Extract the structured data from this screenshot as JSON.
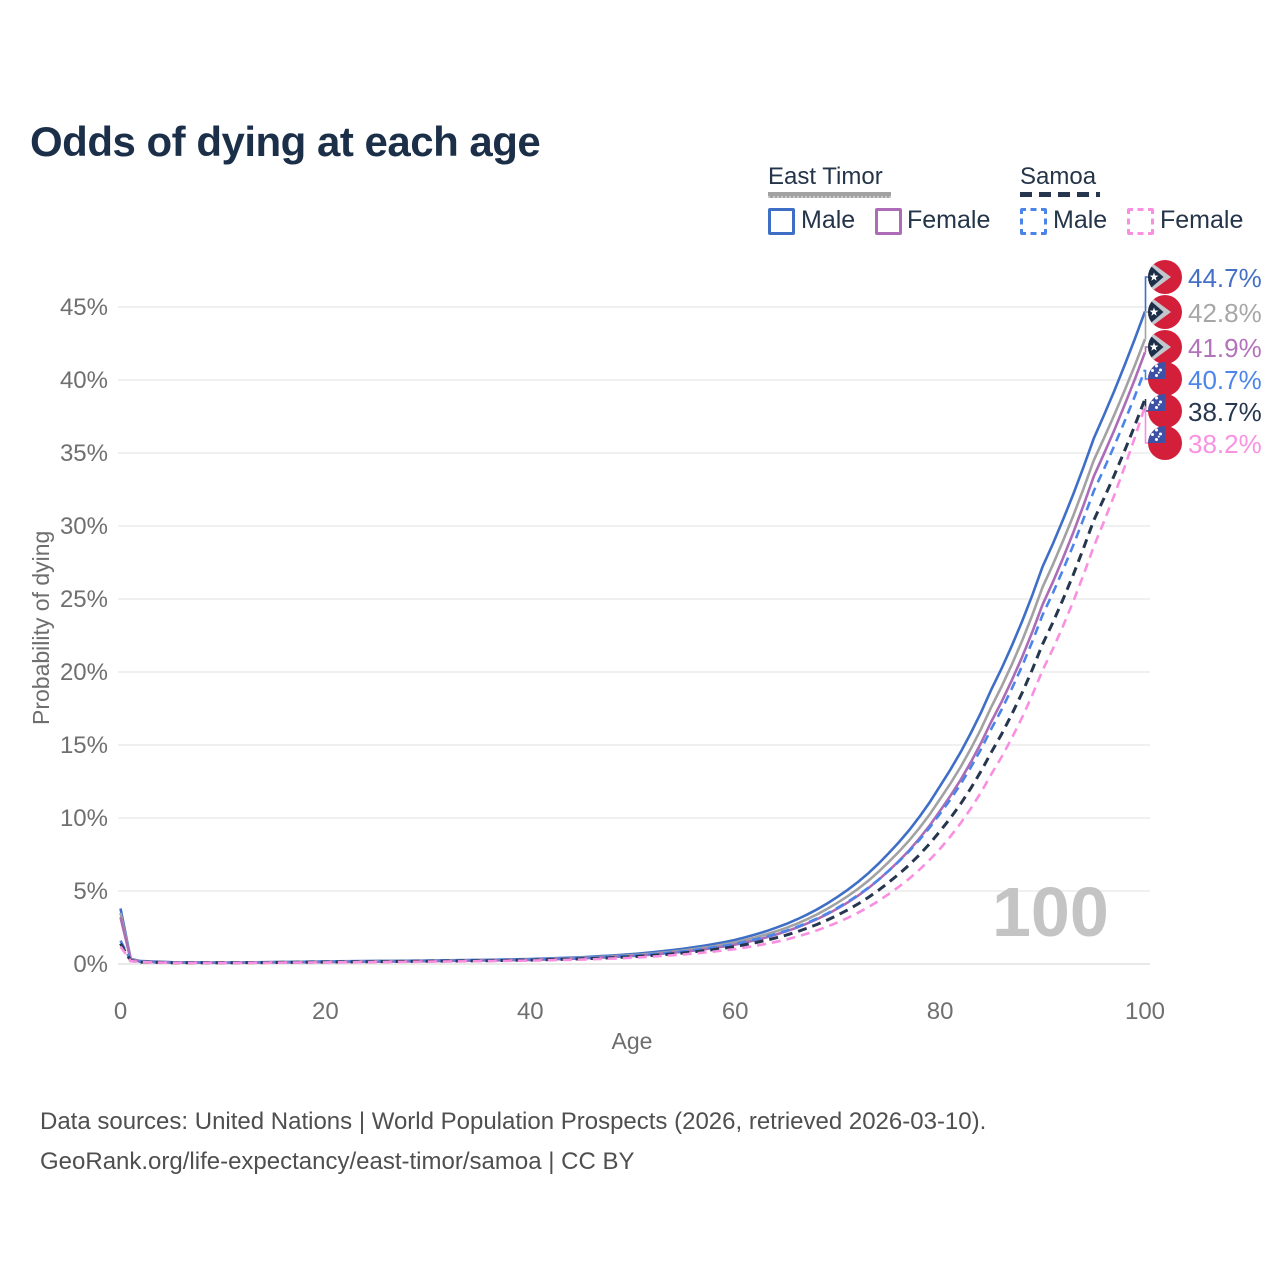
{
  "title": "Odds of dying at each age",
  "watermark": "100",
  "legend": {
    "groups": [
      {
        "country": "East Timor",
        "line_style": "solid",
        "underline_color": "#a2a2a2",
        "items": [
          {
            "label": "Male",
            "color": "#3f6ec6",
            "dashed": false
          },
          {
            "label": "Female",
            "color": "#ac6db6",
            "dashed": false
          }
        ]
      },
      {
        "country": "Samoa",
        "line_style": "dashed",
        "underline_color": "#25364e",
        "items": [
          {
            "label": "Male",
            "color": "#4c85ea",
            "dashed": true
          },
          {
            "label": "Female",
            "color": "#f98fe0",
            "dashed": true
          }
        ]
      }
    ]
  },
  "chart_data": {
    "type": "line",
    "title": "Odds of dying at each age",
    "xlabel": "Age",
    "ylabel": "Probability of dying",
    "xlim": [
      0,
      100
    ],
    "ylim_percent": [
      0,
      47
    ],
    "grid": "horizontal",
    "x_ticks": [
      0,
      20,
      40,
      60,
      80,
      100
    ],
    "x_tick_labels": [
      "0",
      "20",
      "40",
      "60",
      "80",
      "100"
    ],
    "y_ticks_percent": [
      0,
      5,
      10,
      15,
      20,
      25,
      30,
      35,
      40,
      45
    ],
    "y_tick_labels": [
      "0%",
      "5%",
      "10%",
      "15%",
      "20%",
      "25%",
      "30%",
      "35%",
      "40%",
      "45%"
    ],
    "x": [
      0,
      1,
      2,
      5,
      10,
      15,
      20,
      25,
      30,
      35,
      40,
      45,
      50,
      55,
      60,
      65,
      70,
      75,
      80,
      85,
      90,
      95,
      100
    ],
    "series": [
      {
        "id": "east-timor-male",
        "name": "East Timor Male",
        "country": "East Timor",
        "sex": "male",
        "color": "#3f6ec6",
        "dashed": false,
        "end_label": "44.7%",
        "values": [
          3.8,
          0.35,
          0.2,
          0.12,
          0.1,
          0.13,
          0.18,
          0.21,
          0.24,
          0.28,
          0.34,
          0.46,
          0.68,
          1.05,
          1.65,
          2.75,
          4.6,
          7.6,
          12.2,
          18.8,
          27.2,
          36.0,
          44.7
        ]
      },
      {
        "id": "east-timor-both",
        "name": "East Timor",
        "country": "East Timor",
        "sex": "both",
        "color": "#a2a2a2",
        "dashed": false,
        "end_label": "42.8%",
        "values": [
          3.5,
          0.32,
          0.18,
          0.11,
          0.09,
          0.12,
          0.16,
          0.19,
          0.22,
          0.26,
          0.31,
          0.42,
          0.61,
          0.93,
          1.48,
          2.48,
          4.2,
          7.0,
          11.3,
          17.6,
          25.8,
          34.5,
          42.8
        ]
      },
      {
        "id": "east-timor-female",
        "name": "East Timor Female",
        "country": "East Timor",
        "sex": "female",
        "color": "#ac6db6",
        "dashed": false,
        "end_label": "41.9%",
        "values": [
          3.2,
          0.29,
          0.17,
          0.1,
          0.08,
          0.1,
          0.13,
          0.16,
          0.19,
          0.23,
          0.28,
          0.38,
          0.55,
          0.84,
          1.33,
          2.24,
          3.8,
          6.4,
          10.5,
          16.6,
          24.6,
          33.4,
          41.9
        ]
      },
      {
        "id": "samoa-male",
        "name": "Samoa Male",
        "country": "Samoa",
        "sex": "male",
        "color": "#4c85ea",
        "dashed": true,
        "end_label": "40.7%",
        "values": [
          1.6,
          0.25,
          0.15,
          0.1,
          0.09,
          0.12,
          0.16,
          0.19,
          0.22,
          0.26,
          0.31,
          0.4,
          0.57,
          0.87,
          1.38,
          2.28,
          3.85,
          6.4,
          10.3,
          16.1,
          23.9,
          32.4,
          40.7
        ]
      },
      {
        "id": "samoa-both",
        "name": "Samoa",
        "country": "Samoa",
        "sex": "both",
        "color": "#25364e",
        "dashed": true,
        "end_label": "38.7%",
        "values": [
          1.4,
          0.22,
          0.13,
          0.09,
          0.08,
          0.1,
          0.13,
          0.16,
          0.19,
          0.22,
          0.27,
          0.35,
          0.5,
          0.76,
          1.2,
          1.98,
          3.35,
          5.6,
          9.1,
          14.5,
          21.9,
          30.4,
          38.7
        ]
      },
      {
        "id": "samoa-female",
        "name": "Samoa Female",
        "country": "Samoa",
        "sex": "female",
        "color": "#f98fe0",
        "dashed": true,
        "end_label": "38.2%",
        "values": [
          1.2,
          0.2,
          0.12,
          0.08,
          0.07,
          0.09,
          0.11,
          0.13,
          0.16,
          0.19,
          0.23,
          0.3,
          0.43,
          0.66,
          1.02,
          1.68,
          2.85,
          4.8,
          7.9,
          13.0,
          20.1,
          28.6,
          38.2
        ]
      }
    ]
  },
  "end_labels": [
    {
      "value": "44.7%",
      "color": "#4470c5",
      "flag": "east-timor"
    },
    {
      "value": "42.8%",
      "color": "#a7a7a7",
      "flag": "east-timor"
    },
    {
      "value": "41.9%",
      "color": "#b273bb",
      "flag": "east-timor"
    },
    {
      "value": "40.7%",
      "color": "#4c86ea",
      "flag": "samoa"
    },
    {
      "value": "38.7%",
      "color": "#27374e",
      "flag": "samoa"
    },
    {
      "value": "38.2%",
      "color": "#f992e2",
      "flag": "samoa"
    }
  ],
  "footer": {
    "line1": "Data sources: United Nations | World Population Prospects (2026, retrieved 2026-03-10).",
    "line2": "GeoRank.org/life-expectancy/east-timor/samoa | CC BY"
  }
}
